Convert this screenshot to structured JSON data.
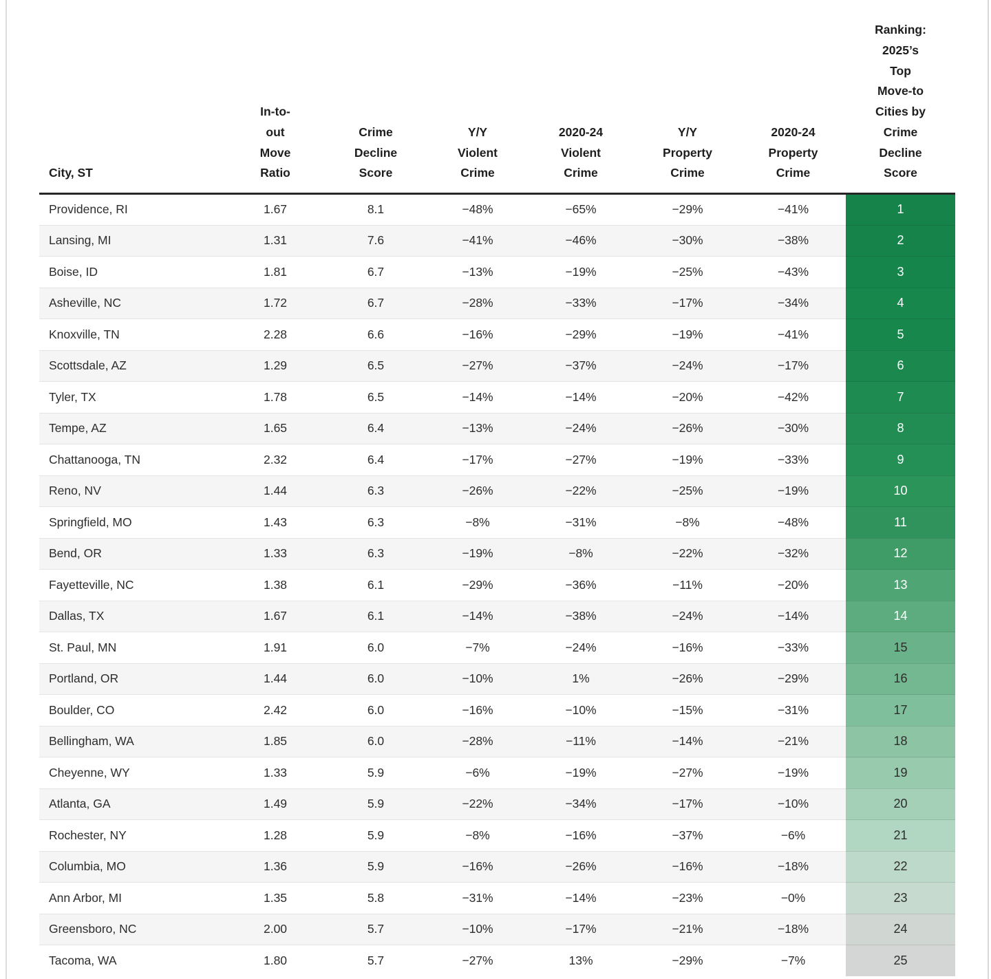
{
  "chart_data": {
    "type": "table",
    "title": "Ranking: 2025's Top Move-to Cities by Crime Decline Score",
    "column_labels": [
      "City, ST",
      "In-to-\nout\nMove\nRatio",
      "Crime\nDecline\nScore",
      "Y/Y\nViolent\nCrime",
      "2020-24\nViolent\nCrime",
      "Y/Y\nProperty\nCrime",
      "2020-24\nProperty\nCrime",
      "Ranking:\n2025’s\nTop\nMove-to\nCities by\nCrime\nDecline\nScore"
    ],
    "rows": [
      [
        "Providence, RI",
        "1.67",
        "8.1",
        "−48%",
        "−65%",
        "−29%",
        "−41%",
        "1"
      ],
      [
        "Lansing, MI",
        "1.31",
        "7.6",
        "−41%",
        "−46%",
        "−30%",
        "−38%",
        "2"
      ],
      [
        "Boise, ID",
        "1.81",
        "6.7",
        "−13%",
        "−19%",
        "−25%",
        "−43%",
        "3"
      ],
      [
        "Asheville, NC",
        "1.72",
        "6.7",
        "−28%",
        "−33%",
        "−17%",
        "−34%",
        "4"
      ],
      [
        "Knoxville, TN",
        "2.28",
        "6.6",
        "−16%",
        "−29%",
        "−19%",
        "−41%",
        "5"
      ],
      [
        "Scottsdale, AZ",
        "1.29",
        "6.5",
        "−27%",
        "−37%",
        "−24%",
        "−17%",
        "6"
      ],
      [
        "Tyler, TX",
        "1.78",
        "6.5",
        "−14%",
        "−14%",
        "−20%",
        "−42%",
        "7"
      ],
      [
        "Tempe, AZ",
        "1.65",
        "6.4",
        "−13%",
        "−24%",
        "−26%",
        "−30%",
        "8"
      ],
      [
        "Chattanooga, TN",
        "2.32",
        "6.4",
        "−17%",
        "−27%",
        "−19%",
        "−33%",
        "9"
      ],
      [
        "Reno, NV",
        "1.44",
        "6.3",
        "−26%",
        "−22%",
        "−25%",
        "−19%",
        "10"
      ],
      [
        "Springfield, MO",
        "1.43",
        "6.3",
        "−8%",
        "−31%",
        "−8%",
        "−48%",
        "11"
      ],
      [
        "Bend, OR",
        "1.33",
        "6.3",
        "−19%",
        "−8%",
        "−22%",
        "−32%",
        "12"
      ],
      [
        "Fayetteville, NC",
        "1.38",
        "6.1",
        "−29%",
        "−36%",
        "−11%",
        "−20%",
        "13"
      ],
      [
        "Dallas, TX",
        "1.67",
        "6.1",
        "−14%",
        "−38%",
        "−24%",
        "−14%",
        "14"
      ],
      [
        "St. Paul, MN",
        "1.91",
        "6.0",
        "−7%",
        "−24%",
        "−16%",
        "−33%",
        "15"
      ],
      [
        "Portland, OR",
        "1.44",
        "6.0",
        "−10%",
        "1%",
        "−26%",
        "−29%",
        "16"
      ],
      [
        "Boulder, CO",
        "2.42",
        "6.0",
        "−16%",
        "−10%",
        "−15%",
        "−31%",
        "17"
      ],
      [
        "Bellingham, WA",
        "1.85",
        "6.0",
        "−28%",
        "−11%",
        "−14%",
        "−21%",
        "18"
      ],
      [
        "Cheyenne, WY",
        "1.33",
        "5.9",
        "−6%",
        "−19%",
        "−27%",
        "−19%",
        "19"
      ],
      [
        "Atlanta, GA",
        "1.49",
        "5.9",
        "−22%",
        "−34%",
        "−17%",
        "−10%",
        "20"
      ],
      [
        "Rochester, NY",
        "1.28",
        "5.9",
        "−8%",
        "−16%",
        "−37%",
        "−6%",
        "21"
      ],
      [
        "Columbia, MO",
        "1.36",
        "5.9",
        "−16%",
        "−26%",
        "−16%",
        "−18%",
        "22"
      ],
      [
        "Ann Arbor, MI",
        "1.35",
        "5.8",
        "−31%",
        "−14%",
        "−23%",
        "−0%",
        "23"
      ],
      [
        "Greensboro, NC",
        "2.00",
        "5.7",
        "−10%",
        "−17%",
        "−21%",
        "−18%",
        "24"
      ],
      [
        "Tacoma, WA",
        "1.80",
        "5.7",
        "−27%",
        "13%",
        "−29%",
        "−7%",
        "25"
      ]
    ]
  },
  "styles": {
    "rank_colors": [
      "#15834a",
      "#15834a",
      "#16854b",
      "#18874c",
      "#18874c",
      "#1b894e",
      "#1e8b50",
      "#218d52",
      "#249056",
      "#2b9459",
      "#30935c",
      "#3f9c66",
      "#4fa573",
      "#5dac80",
      "#69b28a",
      "#73b891",
      "#80bf9b",
      "#8cc4a4",
      "#98caae",
      "#a4d0b8",
      "#b1d6c2",
      "#bdd9ca",
      "#c7dad0",
      "#d0d7d3",
      "#d3d6d4"
    ],
    "rank_white_text_count": 14,
    "rank_light_text": "#ffffff",
    "rank_dark_text": "#2d2d2d",
    "accent_green": "#15834a",
    "stripe_color": "#f5f5f6"
  }
}
